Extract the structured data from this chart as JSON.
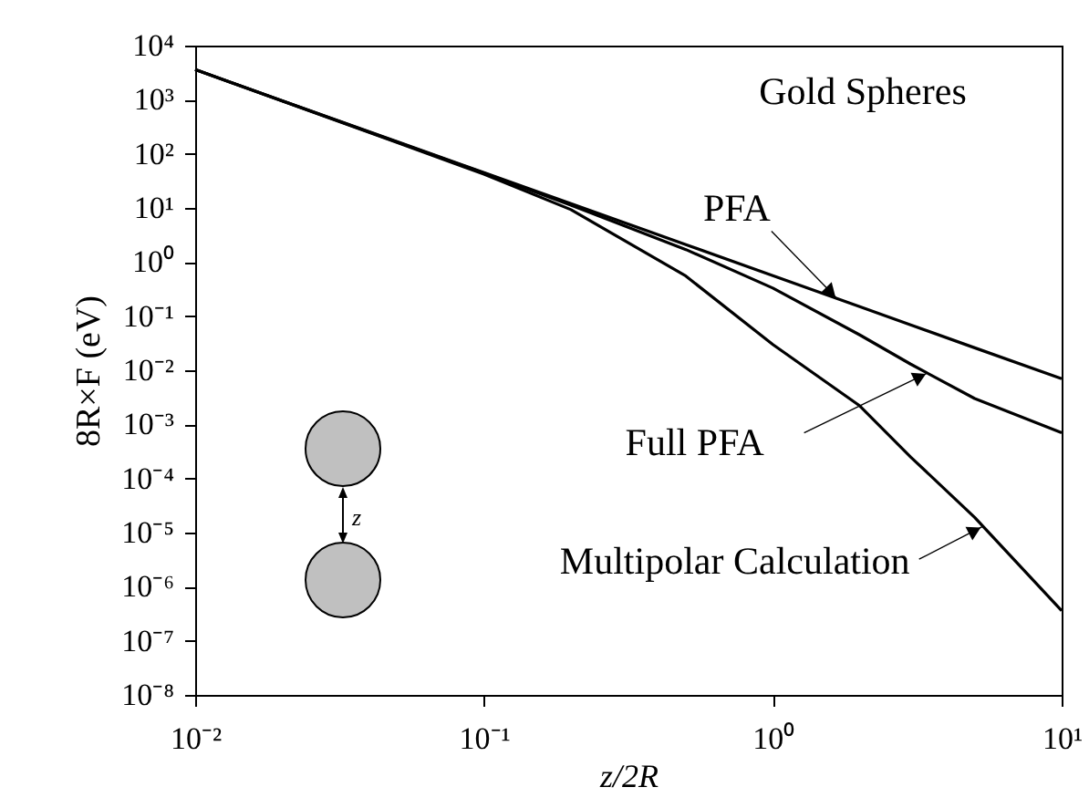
{
  "chart_data": {
    "type": "line",
    "xlabel": "z/2R",
    "ylabel": "8R×F (eV)",
    "log": "xy",
    "grid": false,
    "legend": false,
    "marker": "none",
    "line_style": "solid",
    "x": [
      0.01,
      0.02,
      0.05,
      0.1,
      0.2,
      0.5,
      1,
      2,
      3,
      5,
      10
    ],
    "series": [
      {
        "color": "#000000",
        "values": [
          3600,
          960,
          168,
          45,
          12,
          2.1,
          0.56,
          0.15,
          0.069,
          0.026,
          0.007
        ]
      },
      {
        "color": "#000000",
        "values": [
          3600,
          955,
          165,
          44,
          11.2,
          1.7,
          0.33,
          0.045,
          0.013,
          0.003,
          0.0007
        ]
      },
      {
        "color": "#000000",
        "values": [
          3600,
          950,
          162,
          42,
          9.3,
          0.55,
          0.03,
          0.0022,
          0.00025,
          1.9e-05,
          3.6e-07
        ]
      }
    ],
    "xlim": [
      0.01,
      10
    ],
    "xticks": [
      {
        "value": 0.01,
        "label": "10⁻²"
      },
      {
        "value": 0.1,
        "label": "10⁻¹"
      },
      {
        "value": 1,
        "label": "10⁰"
      },
      {
        "value": 10,
        "label": "10¹"
      }
    ],
    "ylim": [
      1e-08,
      10000
    ],
    "yticks": [
      {
        "value": 1e-08,
        "label": "10⁻⁸"
      },
      {
        "value": 1e-07,
        "label": "10⁻⁷"
      },
      {
        "value": 1e-06,
        "label": "10⁻⁶"
      },
      {
        "value": 1e-05,
        "label": "10⁻⁵"
      },
      {
        "value": 0.0001,
        "label": "10⁻⁴"
      },
      {
        "value": 0.001,
        "label": "10⁻³"
      },
      {
        "value": 0.01,
        "label": "10⁻²"
      },
      {
        "value": 0.1,
        "label": "10⁻¹"
      },
      {
        "value": 1,
        "label": "10⁰"
      },
      {
        "value": 10,
        "label": "10¹"
      },
      {
        "value": 100,
        "label": "10²"
      },
      {
        "value": 1000,
        "label": "10³"
      },
      {
        "value": 10000,
        "label": "10⁴"
      }
    ],
    "annotations": [
      "Gold Spheres",
      {
        "text": "PFA",
        "x": 1.67,
        "y": 0.21
      },
      {
        "text": "Full PFA",
        "x": 3.45,
        "y": 0.009
      },
      {
        "text": "Multipolar Calculation",
        "x": 5.34,
        "y": 1.3e-05
      },
      "z"
    ]
  }
}
